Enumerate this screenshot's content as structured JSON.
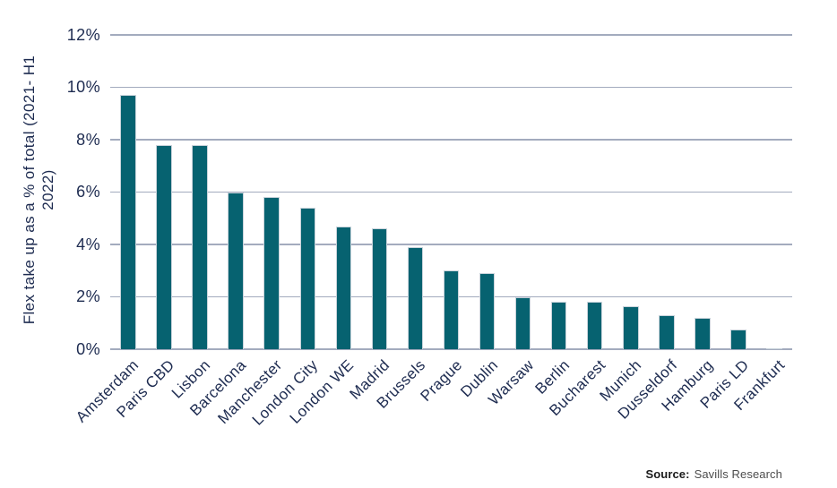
{
  "chart_data": {
    "type": "bar",
    "title": "",
    "ylabel": "Flex take up as a % of total (2021- H1 2022)",
    "ylabel_line1": "Flex take up as a % of total (2021- H1",
    "ylabel_line2": "2022)",
    "xlabel": "",
    "categories": [
      "Amsterdam",
      "Paris CBD",
      "Lisbon",
      "Barcelona",
      "Manchester",
      "London City",
      "London WE",
      "Madrid",
      "Brussels",
      "Prague",
      "Dublin",
      "Warsaw",
      "Berlin",
      "Bucharest",
      "Munich",
      "Dusseldorf",
      "Hamburg",
      "Paris LD",
      "Frankfurt"
    ],
    "values": [
      9.7,
      7.8,
      7.8,
      6.0,
      5.8,
      5.4,
      4.7,
      4.6,
      3.9,
      3.0,
      2.9,
      2.0,
      1.8,
      1.8,
      1.65,
      1.3,
      1.2,
      0.75,
      0.05
    ],
    "ytick_labels": [
      "0%",
      "2%",
      "4%",
      "6%",
      "8%",
      "10%",
      "12%"
    ],
    "ylim": [
      0,
      12
    ],
    "grid": true,
    "legend": "none",
    "bar_color": "#066270",
    "grid_color": "#a3abbe",
    "text_color": "#1d2b50"
  },
  "source": {
    "label": "Source:",
    "text": "Savills Research"
  }
}
